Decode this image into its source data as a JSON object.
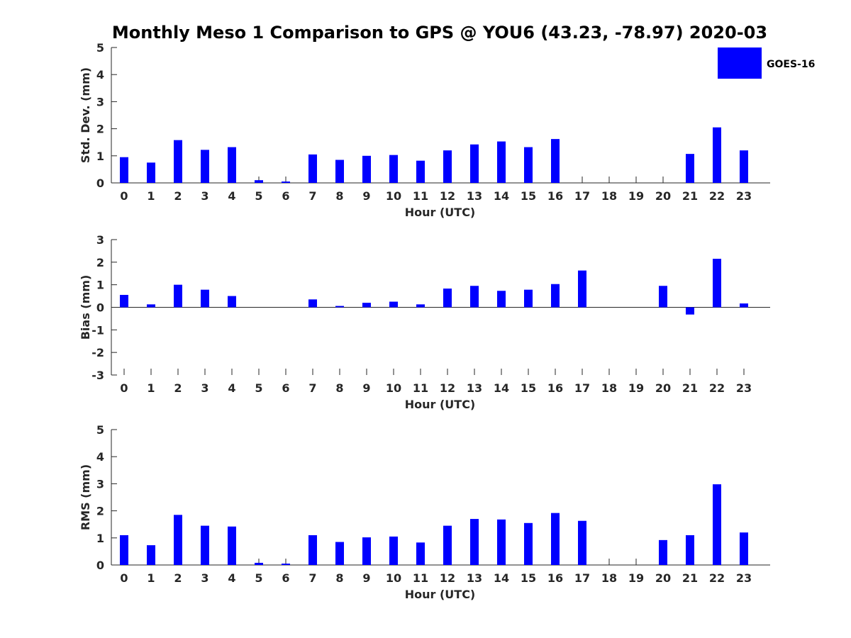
{
  "chart_data": {
    "type": "bar",
    "title": "Monthly Meso 1 Comparison to GPS @ YOU6 (43.23, -78.97) 2020-03",
    "legend": {
      "label": "GOES-16",
      "color": "#0000ff",
      "placement": "top-right"
    },
    "categories": [
      "0",
      "1",
      "2",
      "3",
      "4",
      "5",
      "6",
      "7",
      "8",
      "9",
      "10",
      "11",
      "12",
      "13",
      "14",
      "15",
      "16",
      "17",
      "18",
      "19",
      "20",
      "21",
      "22",
      "23"
    ],
    "panels": [
      {
        "id": "std",
        "ylabel": "Std. Dev. (mm)",
        "xlabel": "Hour (UTC)",
        "ylim": [
          0,
          5
        ],
        "yticks": [
          0,
          1,
          2,
          3,
          4,
          5
        ],
        "values": [
          0.95,
          0.75,
          1.58,
          1.22,
          1.32,
          0.1,
          0.05,
          1.05,
          0.85,
          1.0,
          1.03,
          0.82,
          1.2,
          1.42,
          1.53,
          1.32,
          1.62,
          null,
          null,
          null,
          null,
          1.07,
          2.05,
          1.2
        ]
      },
      {
        "id": "bias",
        "ylabel": "Bias (mm)",
        "xlabel": "Hour (UTC)",
        "ylim": [
          -3,
          3
        ],
        "yticks": [
          -3,
          -2,
          -1,
          0,
          1,
          2,
          3
        ],
        "values": [
          0.55,
          0.13,
          1.0,
          0.78,
          0.5,
          0.0,
          0.0,
          0.35,
          0.06,
          0.2,
          0.25,
          0.13,
          0.83,
          0.95,
          0.73,
          0.78,
          1.03,
          1.63,
          null,
          null,
          0.95,
          -0.32,
          2.15,
          0.17
        ]
      },
      {
        "id": "rms",
        "ylabel": "RMS (mm)",
        "xlabel": "Hour (UTC)",
        "ylim": [
          0,
          5
        ],
        "yticks": [
          0,
          1,
          2,
          3,
          4,
          5
        ],
        "values": [
          1.1,
          0.73,
          1.85,
          1.45,
          1.42,
          0.08,
          0.05,
          1.1,
          0.85,
          1.02,
          1.05,
          0.83,
          1.45,
          1.7,
          1.68,
          1.55,
          1.92,
          1.63,
          null,
          null,
          0.92,
          1.1,
          2.98,
          1.2
        ]
      }
    ]
  }
}
